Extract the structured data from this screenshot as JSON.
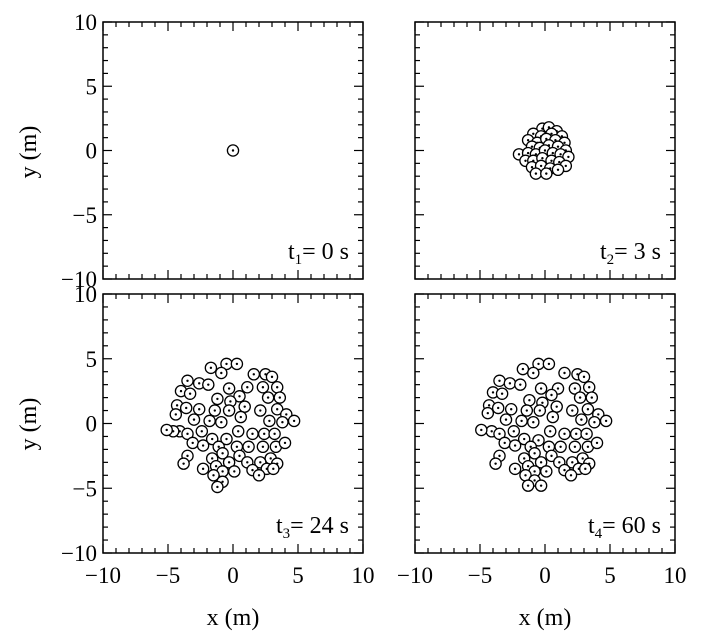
{
  "figure": {
    "xlabel": "x (m)",
    "ylabel": "y (m)"
  },
  "chart_data": [
    {
      "type": "scatter",
      "panel": "top-left",
      "annotation": {
        "base": "t",
        "sub": "1",
        "rest": "= 0 s"
      },
      "xlim": [
        -10,
        10
      ],
      "ylim": [
        -10,
        10
      ],
      "xticks": [
        -10,
        -5,
        0,
        5,
        10
      ],
      "yticks": [
        -10,
        -5,
        0,
        5,
        10
      ],
      "xlabel": "",
      "ylabel": "y (m)",
      "grid": false,
      "points": [
        [
          0,
          0
        ]
      ]
    },
    {
      "type": "scatter",
      "panel": "top-right",
      "annotation": {
        "base": "t",
        "sub": "2",
        "rest": "= 3 s"
      },
      "xlim": [
        -10,
        10
      ],
      "ylim": [
        -10,
        10
      ],
      "xticks": [
        -10,
        -5,
        0,
        5,
        10
      ],
      "yticks": [
        -10,
        -5,
        0,
        5,
        10
      ],
      "xlabel": "",
      "ylabel": "",
      "grid": false,
      "points": [
        [
          -0.2,
          1.7
        ],
        [
          0.3,
          1.8
        ],
        [
          0.9,
          1.5
        ],
        [
          -0.9,
          1.3
        ],
        [
          -0.3,
          1.1
        ],
        [
          0.5,
          1.3
        ],
        [
          1.3,
          1.1
        ],
        [
          -1.3,
          0.8
        ],
        [
          -0.6,
          0.6
        ],
        [
          0.1,
          0.9
        ],
        [
          0.8,
          0.8
        ],
        [
          1.5,
          0.6
        ],
        [
          -1.0,
          0.3
        ],
        [
          -0.4,
          0.2
        ],
        [
          0.3,
          0.4
        ],
        [
          1.0,
          0.3
        ],
        [
          1.6,
          0.0
        ],
        [
          -2.0,
          -0.3
        ],
        [
          -1.3,
          -0.2
        ],
        [
          -0.7,
          -0.3
        ],
        [
          0.0,
          0.0
        ],
        [
          0.6,
          -0.2
        ],
        [
          1.2,
          -0.3
        ],
        [
          1.8,
          -0.5
        ],
        [
          -1.5,
          -0.8
        ],
        [
          -0.9,
          -0.8
        ],
        [
          -0.2,
          -0.6
        ],
        [
          0.5,
          -0.8
        ],
        [
          1.1,
          -0.9
        ],
        [
          1.6,
          -1.2
        ],
        [
          -1.0,
          -1.3
        ],
        [
          -0.3,
          -1.2
        ],
        [
          0.4,
          -1.4
        ],
        [
          1.0,
          -1.5
        ],
        [
          -0.7,
          -1.8
        ],
        [
          0.1,
          -1.8
        ]
      ]
    },
    {
      "type": "scatter",
      "panel": "bottom-left",
      "annotation": {
        "base": "t",
        "sub": "3",
        "rest": "= 24 s"
      },
      "xlim": [
        -10,
        10
      ],
      "ylim": [
        -10,
        10
      ],
      "xticks": [
        -10,
        -5,
        0,
        5,
        10
      ],
      "yticks": [
        -10,
        -5,
        0,
        5,
        10
      ],
      "xlabel": "x (m)",
      "ylabel": "y (m)",
      "grid": false,
      "points": [
        [
          -0.5,
          4.6
        ],
        [
          0.3,
          4.6
        ],
        [
          -1.7,
          4.3
        ],
        [
          -0.9,
          3.9
        ],
        [
          1.6,
          3.8
        ],
        [
          2.5,
          3.8
        ],
        [
          3.0,
          3.6
        ],
        [
          -3.5,
          3.3
        ],
        [
          -2.6,
          3.1
        ],
        [
          -1.9,
          3.0
        ],
        [
          -0.3,
          2.7
        ],
        [
          1.1,
          2.8
        ],
        [
          2.3,
          2.8
        ],
        [
          3.4,
          2.8
        ],
        [
          -4.0,
          2.5
        ],
        [
          -3.3,
          2.3
        ],
        [
          0.5,
          2.1
        ],
        [
          2.7,
          2.0
        ],
        [
          3.6,
          2.0
        ],
        [
          -1.2,
          1.9
        ],
        [
          -0.2,
          1.7
        ],
        [
          -4.3,
          1.4
        ],
        [
          -3.6,
          1.2
        ],
        [
          0.9,
          1.3
        ],
        [
          -2.6,
          1.1
        ],
        [
          -1.4,
          1.0
        ],
        [
          -0.3,
          1.0
        ],
        [
          2.1,
          1.0
        ],
        [
          3.4,
          1.1
        ],
        [
          4.1,
          0.7
        ],
        [
          -4.4,
          0.7
        ],
        [
          0.6,
          0.5
        ],
        [
          -3.0,
          0.3
        ],
        [
          -1.8,
          0.2
        ],
        [
          -0.9,
          0.1
        ],
        [
          2.8,
          0.2
        ],
        [
          3.8,
          0.1
        ],
        [
          4.7,
          0.2
        ],
        [
          -4.1,
          -0.6
        ],
        [
          -4.6,
          -0.6
        ],
        [
          -5.1,
          -0.5
        ],
        [
          -3.5,
          -0.8
        ],
        [
          -2.4,
          -0.6
        ],
        [
          0.4,
          -0.6
        ],
        [
          1.5,
          -0.8
        ],
        [
          2.4,
          -0.8
        ],
        [
          3.2,
          -0.8
        ],
        [
          -1.6,
          -1.2
        ],
        [
          -0.5,
          -1.2
        ],
        [
          -3.1,
          -1.5
        ],
        [
          -2.3,
          -1.7
        ],
        [
          -1.1,
          -1.8
        ],
        [
          0.3,
          -1.8
        ],
        [
          1.2,
          -1.8
        ],
        [
          2.3,
          -1.8
        ],
        [
          3.3,
          -1.8
        ],
        [
          4.0,
          -1.5
        ],
        [
          -0.8,
          -2.3
        ],
        [
          -3.5,
          -2.5
        ],
        [
          0.5,
          -2.5
        ],
        [
          2.9,
          -2.7
        ],
        [
          -3.8,
          -3.1
        ],
        [
          -1.6,
          -2.7
        ],
        [
          -0.3,
          -3.0
        ],
        [
          1.1,
          -3.0
        ],
        [
          2.1,
          -3.0
        ],
        [
          3.4,
          -3.1
        ],
        [
          -2.3,
          -3.5
        ],
        [
          -1.3,
          -3.3
        ],
        [
          -0.8,
          -3.7
        ],
        [
          0.1,
          -3.7
        ],
        [
          1.5,
          -3.6
        ],
        [
          2.6,
          -3.5
        ],
        [
          3.1,
          -3.5
        ],
        [
          -1.5,
          -4.0
        ],
        [
          -0.8,
          -4.5
        ],
        [
          2.0,
          -4.0
        ],
        [
          -1.2,
          -4.9
        ]
      ]
    },
    {
      "type": "scatter",
      "panel": "bottom-right",
      "annotation": {
        "base": "t",
        "sub": "4",
        "rest": "= 60 s"
      },
      "xlim": [
        -10,
        10
      ],
      "ylim": [
        -10,
        10
      ],
      "xticks": [
        -10,
        -5,
        0,
        5,
        10
      ],
      "yticks": [
        -10,
        -5,
        0,
        5,
        10
      ],
      "xlabel": "x (m)",
      "ylabel": "",
      "grid": false,
      "points": [
        [
          -0.5,
          4.6
        ],
        [
          0.3,
          4.6
        ],
        [
          -1.7,
          4.2
        ],
        [
          -0.9,
          3.9
        ],
        [
          1.5,
          3.9
        ],
        [
          2.5,
          3.8
        ],
        [
          3.0,
          3.6
        ],
        [
          -3.5,
          3.3
        ],
        [
          -2.7,
          3.1
        ],
        [
          -1.9,
          3.0
        ],
        [
          -0.3,
          2.7
        ],
        [
          1.0,
          2.7
        ],
        [
          2.3,
          2.7
        ],
        [
          3.4,
          2.8
        ],
        [
          -4.0,
          2.4
        ],
        [
          -3.3,
          2.3
        ],
        [
          0.5,
          2.2
        ],
        [
          2.7,
          2.0
        ],
        [
          3.6,
          2.0
        ],
        [
          -1.2,
          1.8
        ],
        [
          -0.2,
          1.6
        ],
        [
          -4.3,
          1.4
        ],
        [
          -3.6,
          1.2
        ],
        [
          0.9,
          1.3
        ],
        [
          -2.6,
          1.1
        ],
        [
          -1.4,
          1.0
        ],
        [
          -0.4,
          1.0
        ],
        [
          2.1,
          1.0
        ],
        [
          3.3,
          1.1
        ],
        [
          4.1,
          0.7
        ],
        [
          -4.4,
          0.8
        ],
        [
          0.6,
          0.5
        ],
        [
          -3.0,
          0.3
        ],
        [
          -1.8,
          0.2
        ],
        [
          -0.9,
          0.1
        ],
        [
          2.8,
          0.3
        ],
        [
          3.8,
          0.1
        ],
        [
          4.7,
          0.2
        ],
        [
          -4.1,
          -0.6
        ],
        [
          -4.9,
          -0.5
        ],
        [
          -3.5,
          -0.8
        ],
        [
          -2.4,
          -0.6
        ],
        [
          0.4,
          -0.6
        ],
        [
          1.5,
          -0.8
        ],
        [
          2.4,
          -0.8
        ],
        [
          3.2,
          -0.8
        ],
        [
          -1.6,
          -1.2
        ],
        [
          -0.5,
          -1.3
        ],
        [
          -3.1,
          -1.5
        ],
        [
          -2.3,
          -1.7
        ],
        [
          -1.1,
          -1.8
        ],
        [
          0.3,
          -1.8
        ],
        [
          1.2,
          -1.8
        ],
        [
          2.3,
          -1.8
        ],
        [
          3.3,
          -1.8
        ],
        [
          4.0,
          -1.5
        ],
        [
          -0.8,
          -2.3
        ],
        [
          -3.5,
          -2.5
        ],
        [
          0.5,
          -2.5
        ],
        [
          2.9,
          -2.7
        ],
        [
          -3.8,
          -3.1
        ],
        [
          -1.6,
          -2.7
        ],
        [
          -0.3,
          -3.0
        ],
        [
          1.1,
          -3.0
        ],
        [
          2.1,
          -3.0
        ],
        [
          3.4,
          -3.1
        ],
        [
          -2.3,
          -3.5
        ],
        [
          -1.3,
          -3.3
        ],
        [
          -0.8,
          -3.7
        ],
        [
          0.1,
          -3.7
        ],
        [
          1.5,
          -3.6
        ],
        [
          2.6,
          -3.5
        ],
        [
          3.1,
          -3.5
        ],
        [
          -1.5,
          -4.0
        ],
        [
          -0.8,
          -4.4
        ],
        [
          2.0,
          -4.0
        ],
        [
          -1.3,
          -4.8
        ],
        [
          -0.3,
          -4.8
        ]
      ]
    }
  ]
}
